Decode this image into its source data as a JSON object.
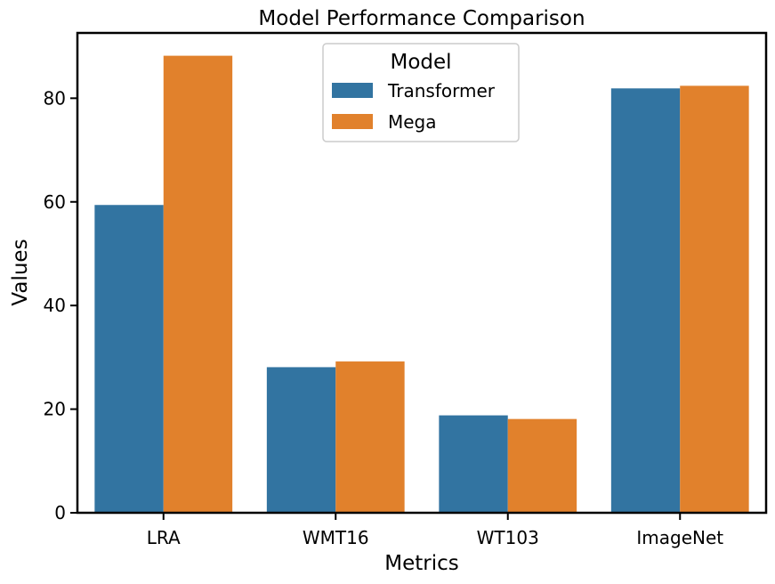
{
  "chart_data": {
    "type": "bar",
    "title": "Model Performance Comparison",
    "xlabel": "Metrics",
    "ylabel": "Values",
    "categories": [
      "LRA",
      "WMT16",
      "WT103",
      "ImageNet"
    ],
    "series": [
      {
        "name": "Transformer",
        "values": [
          59.4,
          28.1,
          18.8,
          81.9
        ],
        "color": "#3274a1"
      },
      {
        "name": "Mega",
        "values": [
          88.2,
          29.2,
          18.1,
          82.4
        ],
        "color": "#e1812c"
      }
    ],
    "ylim": [
      0,
      92.6
    ],
    "yticks": [
      0,
      20,
      40,
      60,
      80
    ],
    "grid": false,
    "legend": {
      "title": "Model",
      "position": "top-center"
    }
  }
}
